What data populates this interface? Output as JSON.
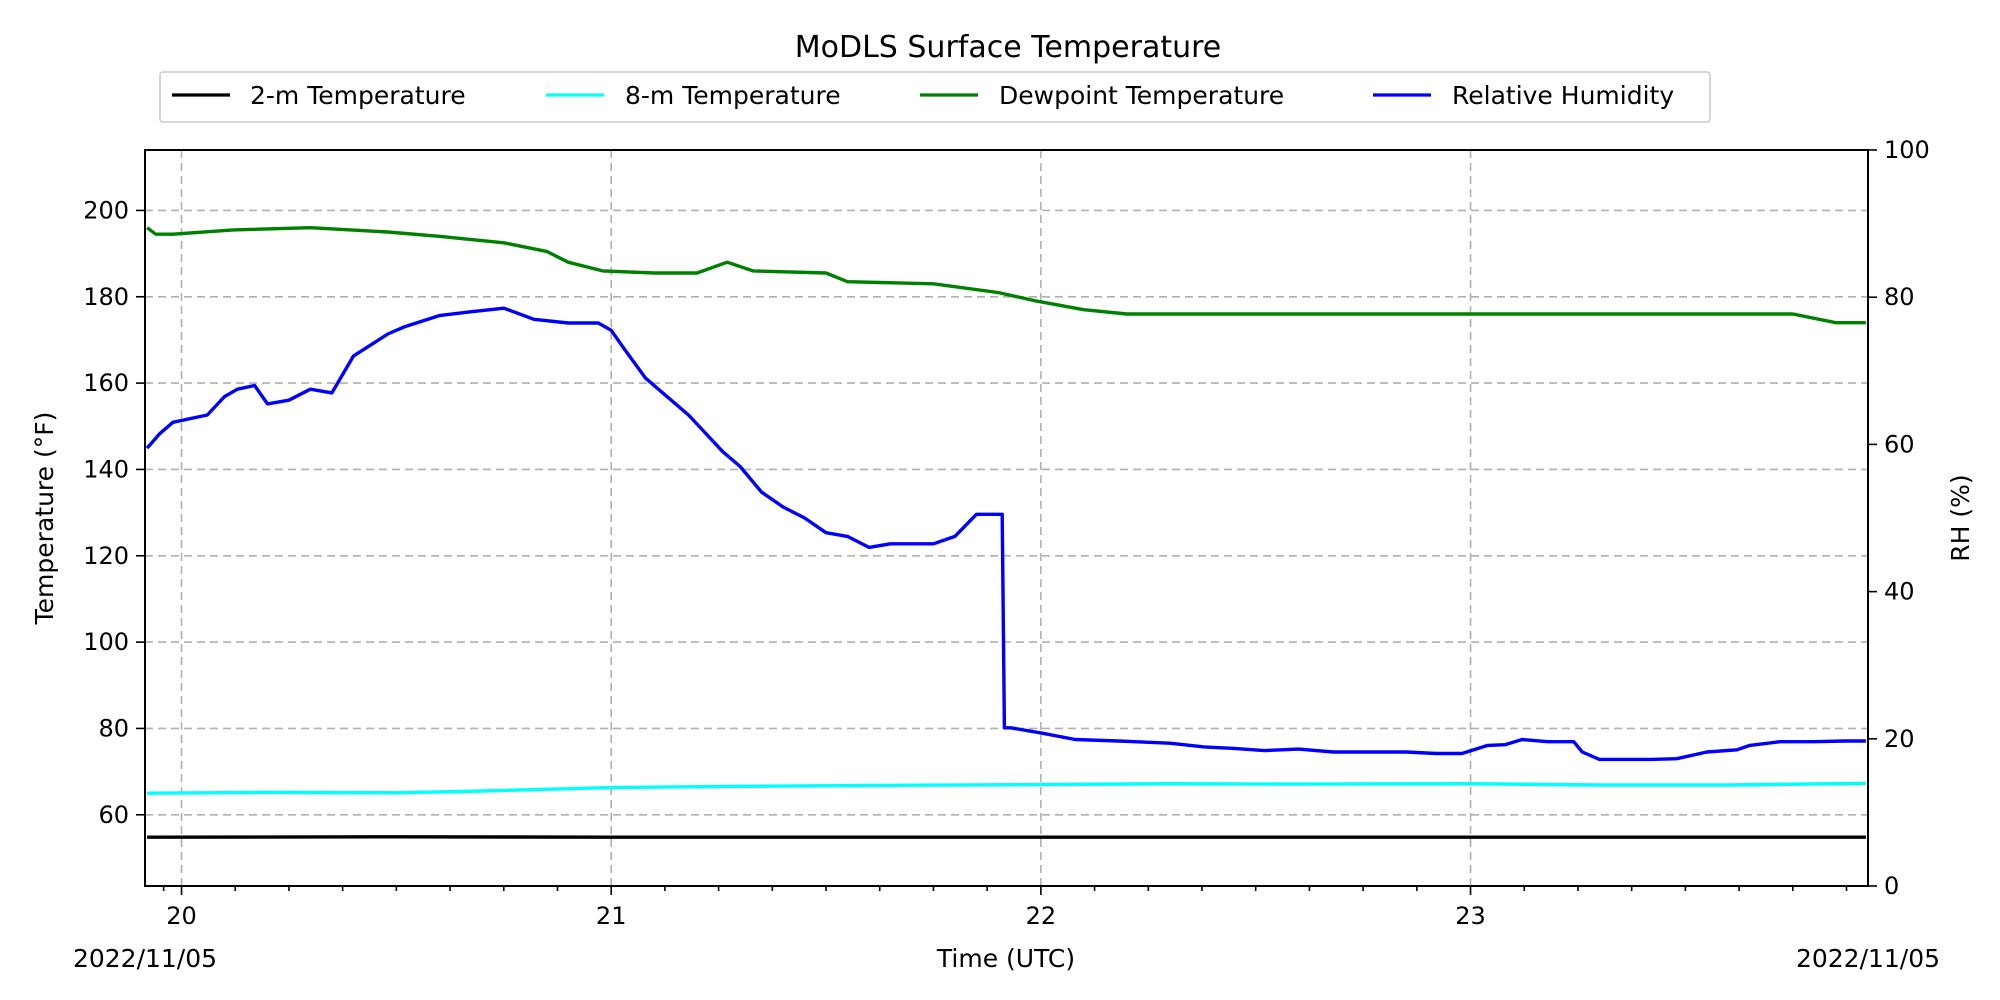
{
  "chart_data": {
    "type": "line",
    "title": "MoDLS Surface Temperature",
    "xlabel": "Time (UTC)",
    "ylabel": "Temperature ($^\\circ$F)",
    "ylabel_display": "Temperature (°F)",
    "y2label": "RH (%)",
    "x_range": [
      19.915,
      23.925
    ],
    "xlim": [
      "2022-11-19 21:58",
      "2022-11-23 22:12"
    ],
    "ylim": [
      43.5,
      214
    ],
    "y2lim": [
      0,
      100
    ],
    "x_ticks": [
      20,
      21,
      22,
      23
    ],
    "x_tick_labels": [
      "20",
      "21",
      "22",
      "23"
    ],
    "x_corner_labels": [
      "2022/11/05",
      "2022/11/05"
    ],
    "y_ticks": [
      60,
      80,
      100,
      120,
      140,
      160,
      180,
      200
    ],
    "y2_ticks": [
      0,
      20,
      40,
      60,
      80,
      100
    ],
    "grid": true,
    "legend": "top-center",
    "series": [
      {
        "name": "2-m Temperature",
        "axis": "left",
        "color": "#000000",
        "x": [
          19.92,
          20.5,
          21.0,
          21.5,
          22.0,
          22.5,
          23.0,
          23.5,
          23.92
        ],
        "y": [
          54.8,
          54.9,
          54.8,
          54.8,
          54.8,
          54.8,
          54.8,
          54.8,
          54.8
        ]
      },
      {
        "name": "8-m Temperature",
        "axis": "left",
        "color": "#00ffff",
        "x": [
          19.92,
          20.2,
          20.5,
          20.7,
          21.0,
          21.3,
          21.6,
          22.0,
          22.3,
          22.6,
          23.0,
          23.3,
          23.6,
          23.92
        ],
        "y": [
          65.0,
          65.2,
          65.1,
          65.5,
          66.3,
          66.6,
          66.8,
          67.0,
          67.2,
          67.1,
          67.2,
          66.9,
          66.9,
          67.3
        ]
      },
      {
        "name": "Dewpoint Temperature",
        "axis": "left",
        "color": "#008000",
        "x": [
          19.92,
          19.94,
          19.98,
          20.12,
          20.3,
          20.48,
          20.6,
          20.75,
          20.85,
          20.9,
          20.98,
          21.1,
          21.2,
          21.27,
          21.33,
          21.5,
          21.55,
          21.75,
          21.9,
          21.99,
          22.1,
          22.2,
          22.5,
          22.8,
          23.0,
          23.3,
          23.6,
          23.75,
          23.85,
          23.92
        ],
        "y": [
          196,
          194.5,
          194.5,
          195.5,
          196,
          195,
          194,
          192.5,
          190.5,
          188,
          186,
          185.5,
          185.5,
          188,
          186,
          185.5,
          183.5,
          183,
          181,
          179,
          177,
          176,
          176,
          176,
          176,
          176,
          176,
          176,
          174,
          174
        ]
      },
      {
        "name": "Relative Humidity",
        "axis": "right",
        "color": "#0000ff",
        "x": [
          19.92,
          19.95,
          19.98,
          20.02,
          20.06,
          20.1,
          20.13,
          20.17,
          20.2,
          20.25,
          20.3,
          20.35,
          20.4,
          20.48,
          20.52,
          20.6,
          20.67,
          20.75,
          20.82,
          20.9,
          20.97,
          21.0,
          21.03,
          21.08,
          21.12,
          21.18,
          21.22,
          21.26,
          21.3,
          21.35,
          21.4,
          21.45,
          21.5,
          21.55,
          21.6,
          21.65,
          21.7,
          21.75,
          21.8,
          21.85,
          21.91,
          21.915,
          21.93,
          22.0,
          22.08,
          22.18,
          22.3,
          22.38,
          22.45,
          22.52,
          22.6,
          22.68,
          22.78,
          22.85,
          22.92,
          22.98,
          23.04,
          23.08,
          23.12,
          23.18,
          23.24,
          23.26,
          23.3,
          23.35,
          23.42,
          23.48,
          23.55,
          23.62,
          23.65,
          23.72,
          23.8,
          23.87,
          23.92
        ],
        "y": [
          59.5,
          61.5,
          63,
          63.5,
          64,
          66.5,
          67.5,
          68,
          65.5,
          66,
          67.5,
          67,
          72,
          75,
          76,
          77.5,
          78,
          78.5,
          77,
          76.5,
          76.5,
          75.5,
          73,
          69,
          67,
          64,
          61.5,
          59,
          57,
          53.5,
          51.5,
          50,
          48,
          47.5,
          46,
          46.5,
          46.5,
          46.5,
          47.5,
          50.5,
          50.5,
          21.5,
          21.5,
          20.8,
          19.9,
          19.7,
          19.4,
          18.9,
          18.7,
          18.4,
          18.6,
          18.2,
          18.2,
          18.2,
          18.0,
          18.0,
          19.1,
          19.2,
          19.9,
          19.6,
          19.6,
          18.2,
          17.2,
          17.2,
          17.2,
          17.3,
          18.2,
          18.5,
          19.1,
          19.6,
          19.6,
          19.7,
          19.7
        ]
      }
    ]
  }
}
